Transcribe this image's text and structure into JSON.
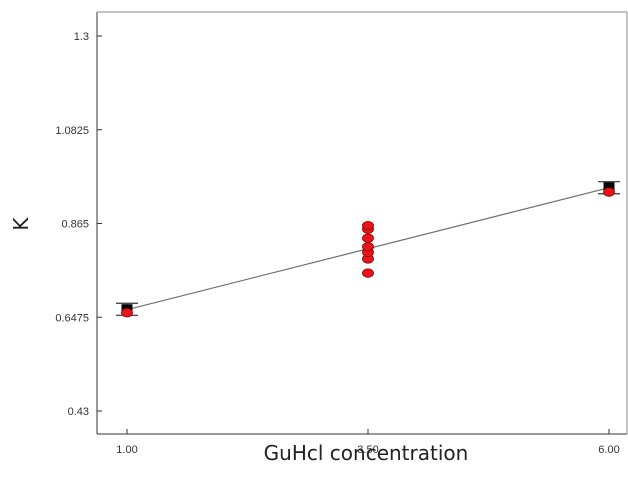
{
  "chart_data": {
    "type": "scatter",
    "xlabel": "GuHcl concentration",
    "ylabel": "K",
    "x_ticks": [
      "1.00",
      "3.50",
      "6.00"
    ],
    "y_ticks": [
      "0.43",
      "0.6475",
      "0.865",
      "1.0825",
      "1.3"
    ],
    "xlim": [
      1.0,
      6.0
    ],
    "ylim": [
      0.43,
      1.3
    ],
    "grid": false,
    "fit_line": {
      "x": [
        1.0,
        6.0
      ],
      "y": [
        0.665,
        0.948
      ]
    },
    "points": [
      {
        "x": 1.0,
        "y": 0.658
      },
      {
        "x": 3.5,
        "y": 0.75
      },
      {
        "x": 3.5,
        "y": 0.783
      },
      {
        "x": 3.5,
        "y": 0.798
      },
      {
        "x": 3.5,
        "y": 0.811
      },
      {
        "x": 3.5,
        "y": 0.831
      },
      {
        "x": 3.5,
        "y": 0.852
      },
      {
        "x": 3.5,
        "y": 0.86
      },
      {
        "x": 6.0,
        "y": 0.938
      }
    ],
    "design_points": [
      {
        "x": 1.0,
        "y": 0.665
      },
      {
        "x": 6.0,
        "y": 0.948
      }
    ],
    "error_bars": [
      {
        "x": 1.0,
        "low": 0.652,
        "high": 0.68
      },
      {
        "x": 6.0,
        "low": 0.934,
        "high": 0.962
      }
    ],
    "colors": {
      "point": "#e8141a",
      "point_edge": "#8a0000",
      "line": "#6e6e6e",
      "marker": "#000000",
      "axis": "#333333"
    }
  }
}
